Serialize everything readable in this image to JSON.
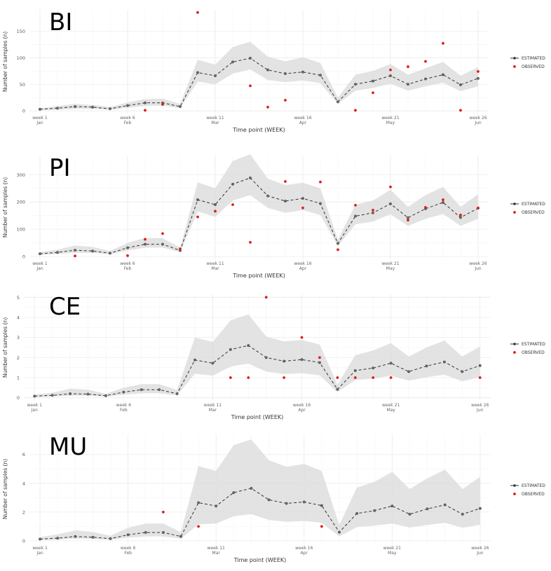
{
  "legend": {
    "estimated": "ESTIMATED",
    "observed": "OBSERVED"
  },
  "colors": {
    "estimated": "#333333",
    "observed": "#e41a1c",
    "band": "#d9d9d9",
    "grid": "#ebebeb"
  },
  "chart_data": [
    {
      "type": "line",
      "title": "BI",
      "xlabel": "Time point (WEEK)",
      "ylabel": "Number of samples (n)",
      "x": [
        1,
        2,
        3,
        4,
        5,
        6,
        7,
        8,
        9,
        10,
        11,
        12,
        13,
        14,
        15,
        16,
        17,
        18,
        19,
        20,
        21,
        22,
        23,
        24,
        25,
        26
      ],
      "xlim": [
        0.4,
        26.6
      ],
      "ylim": [
        -5,
        190
      ],
      "yticks": [
        0,
        50,
        100,
        150
      ],
      "xticks": [
        {
          "week": 1,
          "label": "week 1",
          "month": "Jan"
        },
        {
          "week": 6,
          "label": "week 6",
          "month": "Feb"
        },
        {
          "week": 11,
          "label": "week 11",
          "month": "Mar"
        },
        {
          "week": 16,
          "label": "week 16",
          "month": "Apr"
        },
        {
          "week": 21,
          "label": "week 21",
          "month": "May"
        },
        {
          "week": 26,
          "label": "week 26",
          "month": "Jun"
        }
      ],
      "series": [
        {
          "name": "ESTIMATED",
          "values": [
            3,
            5,
            8,
            7,
            4,
            10,
            15,
            15,
            8,
            72,
            66,
            92,
            99,
            77,
            70,
            73,
            67,
            17,
            50,
            56,
            66,
            50,
            60,
            68,
            49,
            61
          ]
        },
        {
          "name": "LOWER",
          "values": [
            1,
            2,
            4,
            4,
            2,
            6,
            9,
            10,
            5,
            55,
            50,
            70,
            78,
            58,
            54,
            57,
            52,
            13,
            38,
            43,
            51,
            38,
            46,
            53,
            37,
            46
          ]
        },
        {
          "name": "UPPER",
          "values": [
            5,
            9,
            13,
            11,
            7,
            16,
            22,
            23,
            13,
            96,
            87,
            120,
            130,
            102,
            93,
            101,
            90,
            25,
            68,
            75,
            88,
            68,
            80,
            92,
            66,
            82
          ]
        }
      ],
      "observed": [
        {
          "x": 7,
          "y": 1
        },
        {
          "x": 8,
          "y": 12
        },
        {
          "x": 10,
          "y": 185
        },
        {
          "x": 13,
          "y": 47
        },
        {
          "x": 14,
          "y": 7
        },
        {
          "x": 15,
          "y": 20
        },
        {
          "x": 19,
          "y": 1
        },
        {
          "x": 20,
          "y": 34
        },
        {
          "x": 21,
          "y": 77
        },
        {
          "x": 22,
          "y": 83
        },
        {
          "x": 23,
          "y": 93
        },
        {
          "x": 24,
          "y": 127
        },
        {
          "x": 25,
          "y": 1
        },
        {
          "x": 26,
          "y": 74
        }
      ]
    },
    {
      "type": "line",
      "title": "PI",
      "xlabel": "Time point (WEEK)",
      "ylabel": "Number of samples (n)",
      "x": [
        1,
        2,
        3,
        4,
        5,
        6,
        7,
        8,
        9,
        10,
        11,
        12,
        13,
        14,
        15,
        16,
        17,
        18,
        19,
        20,
        21,
        22,
        23,
        24,
        25,
        26
      ],
      "xlim": [
        0.4,
        26.6
      ],
      "ylim": [
        -10,
        370
      ],
      "yticks": [
        0,
        100,
        200,
        300
      ],
      "xticks": [
        {
          "week": 1,
          "label": "week 1",
          "month": "Jan"
        },
        {
          "week": 6,
          "label": "week 6",
          "month": "Feb"
        },
        {
          "week": 11,
          "label": "week 11",
          "month": "Mar"
        },
        {
          "week": 16,
          "label": "week 16",
          "month": "Apr"
        },
        {
          "week": 21,
          "label": "week 21",
          "month": "May"
        },
        {
          "week": 26,
          "label": "week 26",
          "month": "Jun"
        }
      ],
      "series": [
        {
          "name": "ESTIMATED",
          "values": [
            10,
            15,
            23,
            20,
            12,
            32,
            45,
            45,
            22,
            208,
            190,
            265,
            288,
            222,
            203,
            213,
            194,
            48,
            148,
            160,
            193,
            142,
            175,
            198,
            143,
            177
          ]
        },
        {
          "name": "LOWER",
          "values": [
            6,
            9,
            14,
            13,
            8,
            22,
            32,
            33,
            16,
            165,
            145,
            205,
            225,
            178,
            160,
            170,
            152,
            38,
            118,
            128,
            155,
            112,
            138,
            156,
            112,
            138
          ]
        },
        {
          "name": "UPPER",
          "values": [
            16,
            25,
            40,
            35,
            20,
            50,
            68,
            67,
            32,
            272,
            250,
            350,
            375,
            285,
            262,
            270,
            250,
            62,
            190,
            205,
            245,
            182,
            225,
            255,
            182,
            228
          ]
        }
      ],
      "observed": [
        {
          "x": 3,
          "y": 2
        },
        {
          "x": 6,
          "y": 3
        },
        {
          "x": 7,
          "y": 63
        },
        {
          "x": 8,
          "y": 84
        },
        {
          "x": 9,
          "y": 28
        },
        {
          "x": 10,
          "y": 145
        },
        {
          "x": 11,
          "y": 166
        },
        {
          "x": 12,
          "y": 190
        },
        {
          "x": 13,
          "y": 52
        },
        {
          "x": 15,
          "y": 275
        },
        {
          "x": 16,
          "y": 178
        },
        {
          "x": 17,
          "y": 273
        },
        {
          "x": 18,
          "y": 25
        },
        {
          "x": 19,
          "y": 188
        },
        {
          "x": 20,
          "y": 170
        },
        {
          "x": 21,
          "y": 255
        },
        {
          "x": 22,
          "y": 133
        },
        {
          "x": 23,
          "y": 180
        },
        {
          "x": 24,
          "y": 208
        },
        {
          "x": 25,
          "y": 152
        },
        {
          "x": 26,
          "y": 178
        }
      ]
    },
    {
      "type": "line",
      "title": "CE",
      "xlabel": "Time point (WEEK)",
      "ylabel": "Number of samples (n)",
      "x": [
        1,
        2,
        3,
        4,
        5,
        6,
        7,
        8,
        9,
        10,
        11,
        12,
        13,
        14,
        15,
        16,
        17,
        18,
        19,
        20,
        21,
        22,
        23,
        24,
        25,
        26
      ],
      "xlim": [
        0.4,
        26.6
      ],
      "ylim": [
        -0.15,
        5.15
      ],
      "yticks": [
        0,
        1,
        2,
        3,
        4,
        5
      ],
      "xticks": [
        {
          "week": 1,
          "label": "week 1",
          "month": "Jan"
        },
        {
          "week": 6,
          "label": "week 6",
          "month": "Feb"
        },
        {
          "week": 11,
          "label": "week 11",
          "month": "Mar"
        },
        {
          "week": 16,
          "label": "week 16",
          "month": "Apr"
        },
        {
          "week": 21,
          "label": "week 21",
          "month": "May"
        },
        {
          "week": 26,
          "label": "week 26",
          "month": "Jun"
        }
      ],
      "series": [
        {
          "name": "ESTIMATED",
          "values": [
            0.08,
            0.12,
            0.2,
            0.18,
            0.1,
            0.28,
            0.4,
            0.4,
            0.2,
            1.88,
            1.72,
            2.4,
            2.6,
            2.0,
            1.82,
            1.9,
            1.75,
            0.42,
            1.35,
            1.48,
            1.72,
            1.3,
            1.58,
            1.78,
            1.3,
            1.6
          ]
        },
        {
          "name": "LOWER",
          "values": [
            0.03,
            0.06,
            0.1,
            0.1,
            0.05,
            0.15,
            0.22,
            0.22,
            0.12,
            1.2,
            1.1,
            1.55,
            1.7,
            1.3,
            1.18,
            1.22,
            1.12,
            0.28,
            0.88,
            0.95,
            1.1,
            0.85,
            1.02,
            1.15,
            0.82,
            1.02
          ]
        },
        {
          "name": "UPPER",
          "values": [
            0.15,
            0.25,
            0.45,
            0.4,
            0.2,
            0.5,
            0.68,
            0.68,
            0.38,
            3.0,
            2.78,
            3.85,
            4.15,
            3.05,
            2.8,
            2.88,
            2.65,
            0.65,
            2.12,
            2.35,
            2.72,
            2.05,
            2.5,
            2.85,
            2.05,
            2.55
          ]
        }
      ],
      "observed": [
        {
          "x": 12,
          "y": 1
        },
        {
          "x": 13,
          "y": 1
        },
        {
          "x": 14,
          "y": 5
        },
        {
          "x": 15,
          "y": 1
        },
        {
          "x": 16,
          "y": 3
        },
        {
          "x": 17,
          "y": 2
        },
        {
          "x": 18,
          "y": 1
        },
        {
          "x": 19,
          "y": 1
        },
        {
          "x": 20,
          "y": 1
        },
        {
          "x": 21,
          "y": 1
        },
        {
          "x": 26,
          "y": 1
        }
      ]
    },
    {
      "type": "line",
      "title": "MU",
      "xlabel": "Time point (WEEK)",
      "ylabel": "Number of samples (n)",
      "x": [
        1,
        2,
        3,
        4,
        5,
        6,
        7,
        8,
        9,
        10,
        11,
        12,
        13,
        14,
        15,
        16,
        17,
        18,
        19,
        20,
        21,
        22,
        23,
        24,
        25,
        26
      ],
      "xlim": [
        0.4,
        26.6
      ],
      "ylim": [
        -0.2,
        7.4
      ],
      "yticks": [
        0,
        2,
        4,
        6
      ],
      "xticks": [
        {
          "week": 1,
          "label": "week 1",
          "month": "Jan"
        },
        {
          "week": 6,
          "label": "week 6",
          "month": "Feb"
        },
        {
          "week": 11,
          "label": "week 11",
          "month": "Mar"
        },
        {
          "week": 16,
          "label": "week 16",
          "month": "Apr"
        },
        {
          "week": 21,
          "label": "week 21",
          "month": "May"
        },
        {
          "week": 26,
          "label": "week 26",
          "month": "Jun"
        }
      ],
      "series": [
        {
          "name": "ESTIMATED",
          "values": [
            0.12,
            0.18,
            0.3,
            0.25,
            0.15,
            0.42,
            0.58,
            0.58,
            0.3,
            2.65,
            2.42,
            3.35,
            3.65,
            2.85,
            2.6,
            2.7,
            2.45,
            0.6,
            1.9,
            2.1,
            2.42,
            1.85,
            2.22,
            2.5,
            1.85,
            2.25
          ]
        },
        {
          "name": "LOWER",
          "values": [
            0.05,
            0.08,
            0.15,
            0.12,
            0.07,
            0.22,
            0.3,
            0.3,
            0.15,
            1.15,
            1.2,
            1.7,
            1.85,
            1.45,
            1.32,
            1.38,
            1.25,
            0.3,
            0.95,
            1.05,
            1.2,
            0.92,
            1.1,
            1.25,
            0.9,
            1.12
          ]
        },
        {
          "name": "UPPER",
          "values": [
            0.25,
            0.45,
            0.72,
            0.62,
            0.35,
            0.9,
            1.2,
            1.2,
            0.6,
            5.2,
            4.85,
            6.65,
            7.05,
            5.6,
            5.15,
            5.35,
            4.85,
            1.1,
            3.7,
            4.1,
            4.8,
            3.6,
            4.35,
            4.95,
            3.6,
            4.45
          ]
        }
      ],
      "observed": [
        {
          "x": 8,
          "y": 2
        },
        {
          "x": 10,
          "y": 1
        },
        {
          "x": 17,
          "y": 1
        }
      ]
    }
  ]
}
